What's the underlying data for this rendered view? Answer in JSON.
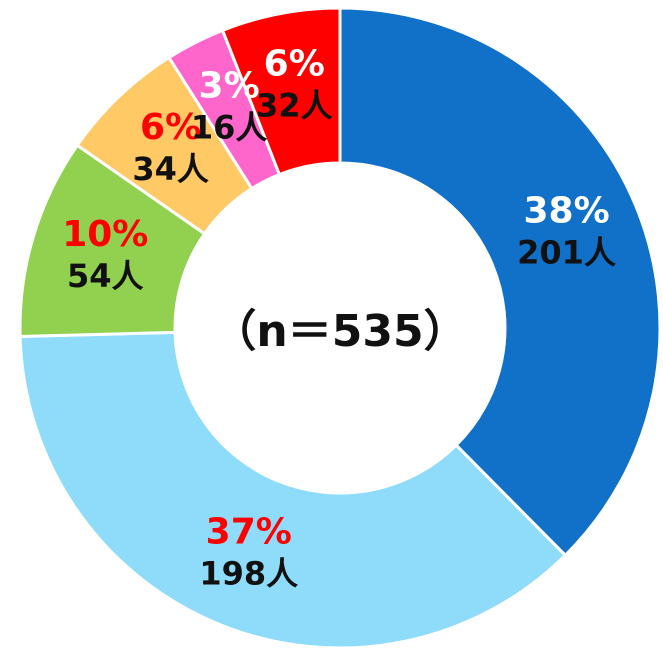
{
  "chart_data": {
    "type": "pie",
    "values": [
      201,
      198,
      54,
      34,
      16,
      32
    ],
    "value_labels": [
      "201人",
      "198人",
      "54人",
      "34人",
      "16人",
      "32人"
    ],
    "percentages": [
      38,
      37,
      10,
      6,
      3,
      6
    ],
    "percentage_labels": [
      "38%",
      "37%",
      "10%",
      "6%",
      "3%",
      "6%"
    ],
    "colors": [
      "#1170c8",
      "#8fdcfa",
      "#92d050",
      "#ffc966",
      "#ff66cc",
      "#ff0000"
    ],
    "percentage_label_colors": [
      "#ffffff",
      "#ff0000",
      "#ff0000",
      "#ff0000",
      "#ffffff",
      "#ffffff"
    ],
    "center_label": "（n＝535）"
  }
}
